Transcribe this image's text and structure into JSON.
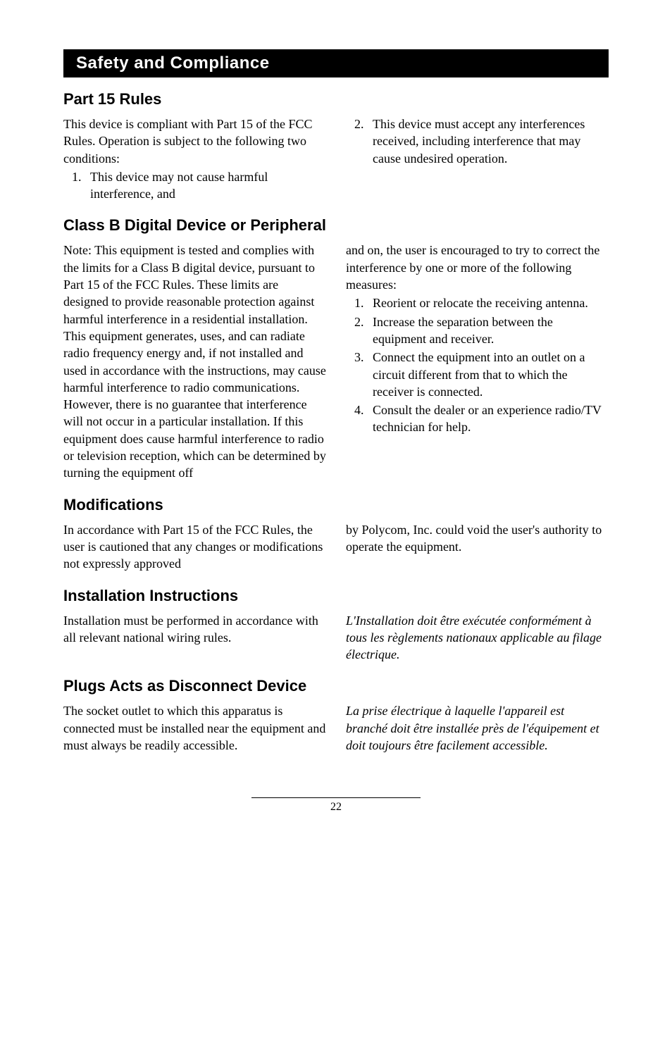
{
  "banner": "Safety and Compliance",
  "part15": {
    "heading": "Part 15 Rules",
    "intro": "This device is compliant with Part 15 of the FCC Rules.  Operation is subject to the following two conditions:",
    "item1": "This device may not cause harmful interference, and",
    "item2": "This device must accept any interferences received, including interference that may cause undesired operation."
  },
  "classb": {
    "heading": "Class B Digital Device or Peripheral",
    "left": "Note:  This equipment is tested and complies with the limits for a Class B digital device, pursuant to Part 15 of the FCC Rules.  These limits are designed to provide reasonable protection against harmful interference in a residential installation.  This equipment generates, uses, and can radiate radio frequency energy and, if not installed and used in accordance with the instructions, may cause harmful interference to radio communications.  However, there is no guarantee that interference will not occur in a particular installation.  If this equipment does cause harmful interference to radio or television reception, which can be determined by turning the equipment off",
    "right_intro": "and on, the user is encouraged to try to correct the interference by one or more of the following measures:",
    "m1": "Reorient or relocate the receiving antenna.",
    "m2": "Increase the separation between the equipment and receiver.",
    "m3": "Connect the equipment into an outlet on a circuit different from that to which the receiver is connected.",
    "m4": "Consult the dealer or an experience radio/TV technician for help."
  },
  "mods": {
    "heading": "Modifications",
    "left": "In accordance with Part 15 of the FCC Rules, the user is cautioned that any changes or modifications not expressly approved",
    "right": "by Polycom, Inc. could void the user's authority to operate the equipment."
  },
  "install": {
    "heading": "Installation Instructions",
    "left": "Installation must be performed in accordance with all relevant national wiring rules.",
    "right": "L'Installation doit être exécutée conformément à tous les règlements nationaux applicable au filage électrique."
  },
  "plugs": {
    "heading": "Plugs Acts as Disconnect Device",
    "left": "The socket outlet to which this apparatus is connected must be installed near the equipment and must always be readily accessible.",
    "right": "La prise électrique à laquelle l'appareil est branché doit être installée près de l'équipement et doit toujours être facilement accessible."
  },
  "page": "22"
}
